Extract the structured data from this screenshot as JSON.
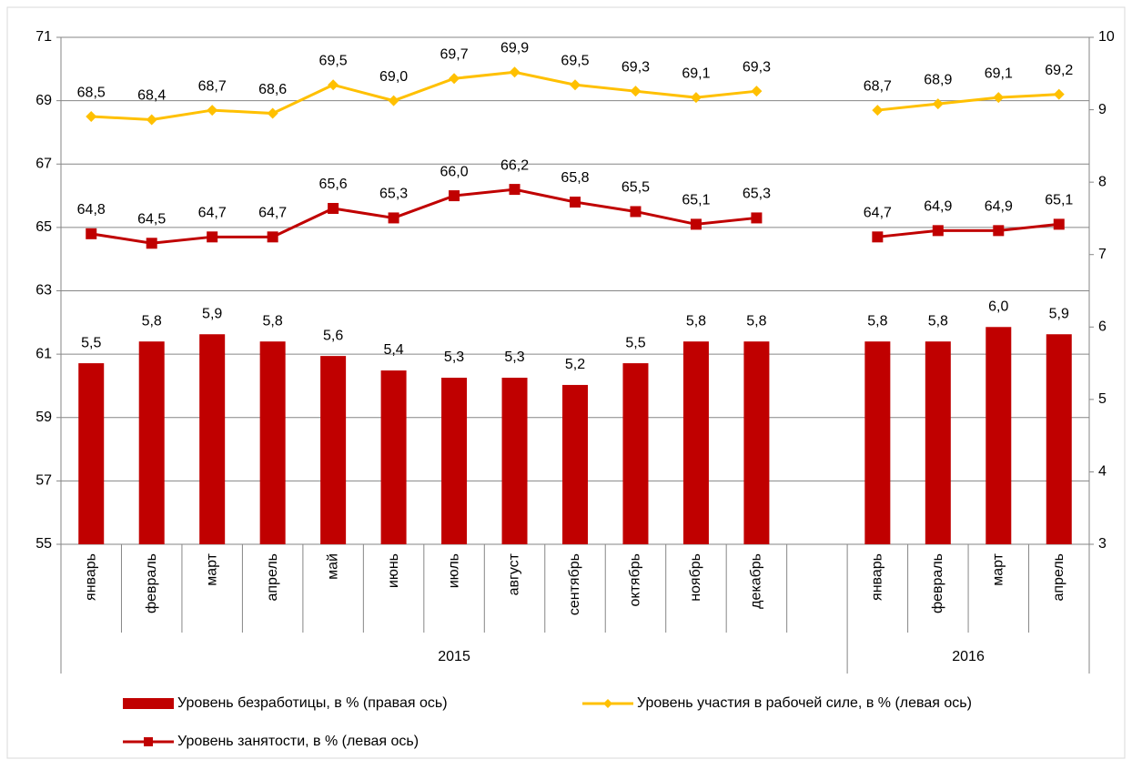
{
  "chart_data": {
    "type": "bar-line",
    "categories": [
      "январь",
      "февраль",
      "март",
      "апрель",
      "май",
      "июнь",
      "июль",
      "август",
      "сентябрь",
      "октябрь",
      "ноябрь",
      "декабрь",
      null,
      "январь",
      "февраль",
      "март",
      "апрель"
    ],
    "groups": [
      {
        "label": "2015",
        "count": 13
      },
      {
        "label": "2016",
        "count": 4
      }
    ],
    "series": [
      {
        "name": "Уровень безработицы, в % (правая ось)",
        "type": "bar",
        "axis": "y2",
        "color": "#c00000",
        "values": [
          5.5,
          5.8,
          5.9,
          5.8,
          5.6,
          5.4,
          5.3,
          5.3,
          5.2,
          5.5,
          5.8,
          5.8,
          null,
          5.8,
          5.8,
          6.0,
          5.9
        ],
        "value_labels": [
          "5,5",
          "5,8",
          "5,9",
          "5,8",
          "5,6",
          "5,4",
          "5,3",
          "5,3",
          "5,2",
          "5,5",
          "5,8",
          "5,8",
          null,
          "5,8",
          "5,8",
          "6,0",
          "5,9"
        ]
      },
      {
        "name": "Уровень участия в рабочей силе, в % (левая ось)",
        "type": "line",
        "marker": "diamond",
        "color": "#ffc000",
        "values": [
          68.5,
          68.4,
          68.7,
          68.6,
          69.5,
          69.0,
          69.7,
          69.9,
          69.5,
          69.3,
          69.1,
          69.3,
          null,
          68.7,
          68.9,
          69.1,
          69.2
        ],
        "value_labels": [
          "68,5",
          "68,4",
          "68,7",
          "68,6",
          "69,5",
          "69,0",
          "69,7",
          "69,9",
          "69,5",
          "69,3",
          "69,1",
          "69,3",
          null,
          "68,7",
          "68,9",
          "69,1",
          "69,2"
        ]
      },
      {
        "name": "Уровень занятости, в % (левая ось)",
        "type": "line",
        "marker": "square",
        "color": "#c00000",
        "values": [
          64.8,
          64.5,
          64.7,
          64.7,
          65.6,
          65.3,
          66.0,
          66.2,
          65.8,
          65.5,
          65.1,
          65.3,
          null,
          64.7,
          64.9,
          64.9,
          65.1
        ],
        "value_labels": [
          "64,8",
          "64,5",
          "64,7",
          "64,7",
          "65,6",
          "65,3",
          "66,0",
          "66,2",
          "65,8",
          "65,5",
          "65,1",
          "65,3",
          null,
          "64,7",
          "64,9",
          "64,9",
          "65,1"
        ]
      }
    ],
    "ylim": [
      55,
      71
    ],
    "yticks": [
      55,
      57,
      59,
      61,
      63,
      65,
      67,
      69,
      71
    ],
    "y2lim": [
      3,
      10
    ],
    "y2ticks": [
      3,
      4,
      5,
      6,
      7,
      8,
      9,
      10
    ],
    "grid": true
  }
}
